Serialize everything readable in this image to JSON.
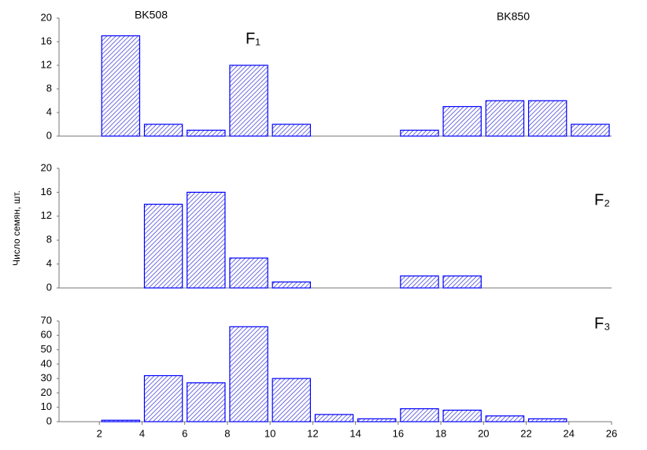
{
  "chart_data": [
    {
      "type": "histogram",
      "annotations": [
        "BK508",
        "BK850"
      ],
      "label": "F₁",
      "bins": [
        2,
        4,
        6,
        8,
        10,
        12,
        14,
        16,
        18,
        20,
        22,
        24,
        26
      ],
      "values": [
        17,
        2,
        1,
        12,
        2,
        0,
        0,
        1,
        5,
        6,
        6,
        2
      ],
      "color": "#0000ff",
      "xlim": [
        0,
        26
      ],
      "ylim": [
        0,
        20
      ],
      "yticks": [
        0,
        4,
        8,
        12,
        16,
        20
      ]
    },
    {
      "type": "histogram",
      "label": "F₂",
      "ylabel": "Число семян, шт.",
      "bins": [
        2,
        4,
        6,
        8,
        10,
        12,
        14,
        16,
        18,
        20,
        22,
        24,
        26
      ],
      "values": [
        0,
        14,
        16,
        5,
        1,
        0,
        0,
        2,
        2,
        0,
        0,
        0
      ],
      "color": "#0000ff",
      "xlim": [
        0,
        26
      ],
      "ylim": [
        0,
        20
      ],
      "yticks": [
        0,
        4,
        8,
        12,
        16,
        20
      ]
    },
    {
      "type": "histogram",
      "label": "F₃",
      "bins": [
        2,
        4,
        6,
        8,
        10,
        12,
        14,
        16,
        18,
        20,
        22,
        24,
        26
      ],
      "values": [
        1,
        32,
        27,
        66,
        30,
        5,
        2,
        9,
        8,
        4,
        2,
        0
      ],
      "color": "#0000ff",
      "xlim": [
        0,
        26
      ],
      "ylim": [
        0,
        70
      ],
      "yticks": [
        0,
        10,
        20,
        30,
        40,
        50,
        60,
        70
      ],
      "xticks": [
        2,
        4,
        6,
        8,
        10,
        12,
        14,
        16,
        18,
        20,
        22,
        24,
        26
      ]
    }
  ]
}
